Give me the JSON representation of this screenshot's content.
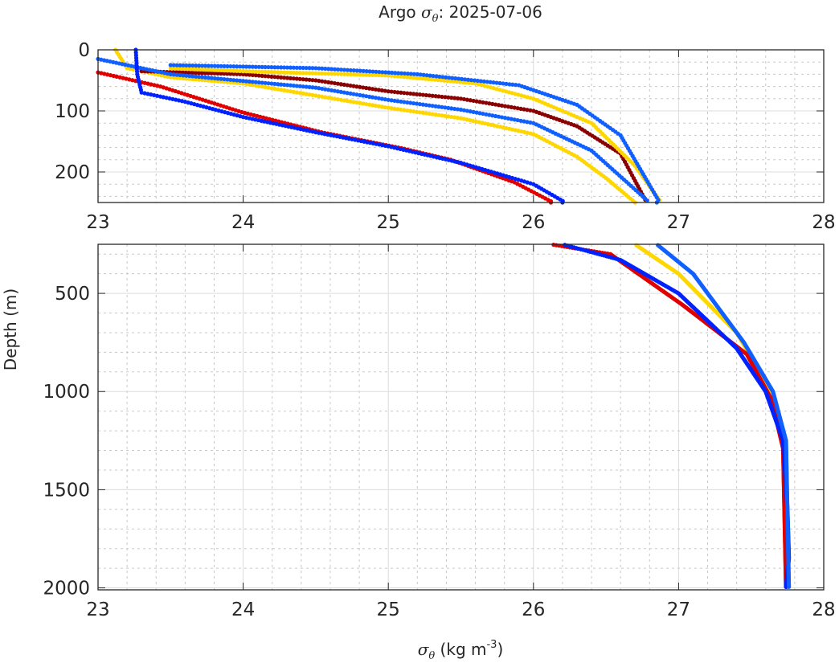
{
  "chart_data": {
    "type": "scatter",
    "title_prefix": "Argo ",
    "title_symbol": "σ",
    "title_sub": "θ",
    "title_suffix": ": 2025-07-06",
    "xlabel_symbol": "σ",
    "xlabel_sub": "θ",
    "xlabel_units": " (kg m",
    "xlabel_exp": "-3",
    "xlabel_close": ")",
    "ylabel": "Depth (m)",
    "xlim": [
      23,
      28
    ],
    "xticks": [
      "23",
      "24",
      "25",
      "26",
      "27",
      "28"
    ],
    "panels": [
      {
        "name": "upper",
        "ylim": [
          0,
          250
        ],
        "yticks": [
          0,
          100,
          200
        ],
        "ytick_labels": [
          "0",
          "100",
          "200"
        ],
        "minor_y": 20
      },
      {
        "name": "lower",
        "ylim": [
          250,
          2010
        ],
        "yticks": [
          500,
          1000,
          1500,
          2000
        ],
        "ytick_labels": [
          "500",
          "1000",
          "1500",
          "2000"
        ],
        "minor_y": 100
      }
    ],
    "grid": true,
    "series": [
      {
        "name": "profile-yellow-1",
        "color": "#FFD700",
        "points": [
          [
            23.12,
            0
          ],
          [
            23.2,
            30
          ],
          [
            23.5,
            45
          ],
          [
            24.0,
            55
          ],
          [
            24.5,
            75
          ],
          [
            25.0,
            95
          ],
          [
            25.5,
            112
          ],
          [
            26.0,
            138
          ],
          [
            26.3,
            175
          ],
          [
            26.5,
            210
          ],
          [
            26.7,
            250
          ]
        ]
      },
      {
        "name": "profile-darkred",
        "color": "#8B0000",
        "points": [
          [
            23.3,
            35
          ],
          [
            24.0,
            40
          ],
          [
            24.5,
            50
          ],
          [
            25.0,
            68
          ],
          [
            25.5,
            80
          ],
          [
            26.0,
            100
          ],
          [
            26.3,
            125
          ],
          [
            26.6,
            170
          ],
          [
            26.78,
            250
          ]
        ]
      },
      {
        "name": "profile-lightblue-2",
        "color": "#1060FF",
        "points": [
          [
            23.0,
            15
          ],
          [
            23.5,
            40
          ],
          [
            24.5,
            62
          ],
          [
            25.0,
            82
          ],
          [
            25.5,
            98
          ],
          [
            26.0,
            120
          ],
          [
            26.4,
            165
          ],
          [
            26.8,
            250
          ]
        ]
      },
      {
        "name": "profile-yellow-2",
        "color": "#FFD700",
        "points": [
          [
            23.5,
            30
          ],
          [
            24.0,
            35
          ],
          [
            25.0,
            42
          ],
          [
            25.6,
            55
          ],
          [
            26.0,
            80
          ],
          [
            26.4,
            120
          ],
          [
            26.7,
            190
          ],
          [
            26.88,
            250
          ],
          [
            26.7,
            250
          ],
          [
            27.0,
            400
          ],
          [
            27.4,
            700
          ],
          [
            27.6,
            950
          ],
          [
            27.72,
            1200
          ],
          [
            27.75,
            1600
          ],
          [
            27.75,
            2000
          ]
        ]
      },
      {
        "name": "profile-red",
        "color": "#E00000",
        "points": [
          [
            23.0,
            37
          ],
          [
            23.43,
            60
          ],
          [
            23.99,
            102
          ],
          [
            24.54,
            135
          ],
          [
            25.09,
            161
          ],
          [
            25.43,
            180
          ],
          [
            25.87,
            217
          ],
          [
            26.12,
            248
          ],
          [
            26.12,
            250
          ],
          [
            26.53,
            300
          ],
          [
            27.03,
            560
          ],
          [
            27.47,
            810
          ],
          [
            27.64,
            1040
          ],
          [
            27.72,
            1290
          ],
          [
            27.74,
            2000
          ]
        ]
      },
      {
        "name": "profile-blue",
        "color": "#0022FF",
        "points": [
          [
            23.26,
            0
          ],
          [
            23.27,
            40
          ],
          [
            23.3,
            70
          ],
          [
            23.6,
            85
          ],
          [
            24.0,
            110
          ],
          [
            24.5,
            135
          ],
          [
            25.0,
            158
          ],
          [
            25.5,
            185
          ],
          [
            26.0,
            220
          ],
          [
            26.22,
            250
          ],
          [
            26.2,
            250
          ],
          [
            26.6,
            330
          ],
          [
            27.0,
            500
          ],
          [
            27.4,
            780
          ],
          [
            27.6,
            1000
          ],
          [
            27.72,
            1250
          ],
          [
            27.75,
            1600
          ],
          [
            27.76,
            1850
          ],
          [
            27.74,
            2000
          ]
        ]
      },
      {
        "name": "profile-lightblue-1",
        "color": "#1060FF",
        "points": [
          [
            23.5,
            25
          ],
          [
            24.5,
            30
          ],
          [
            25.2,
            40
          ],
          [
            25.9,
            58
          ],
          [
            26.3,
            90
          ],
          [
            26.6,
            140
          ],
          [
            26.87,
            250
          ],
          [
            26.85,
            250
          ],
          [
            27.1,
            400
          ],
          [
            27.45,
            750
          ],
          [
            27.65,
            1000
          ],
          [
            27.74,
            1250
          ],
          [
            27.76,
            2000
          ]
        ]
      }
    ]
  }
}
